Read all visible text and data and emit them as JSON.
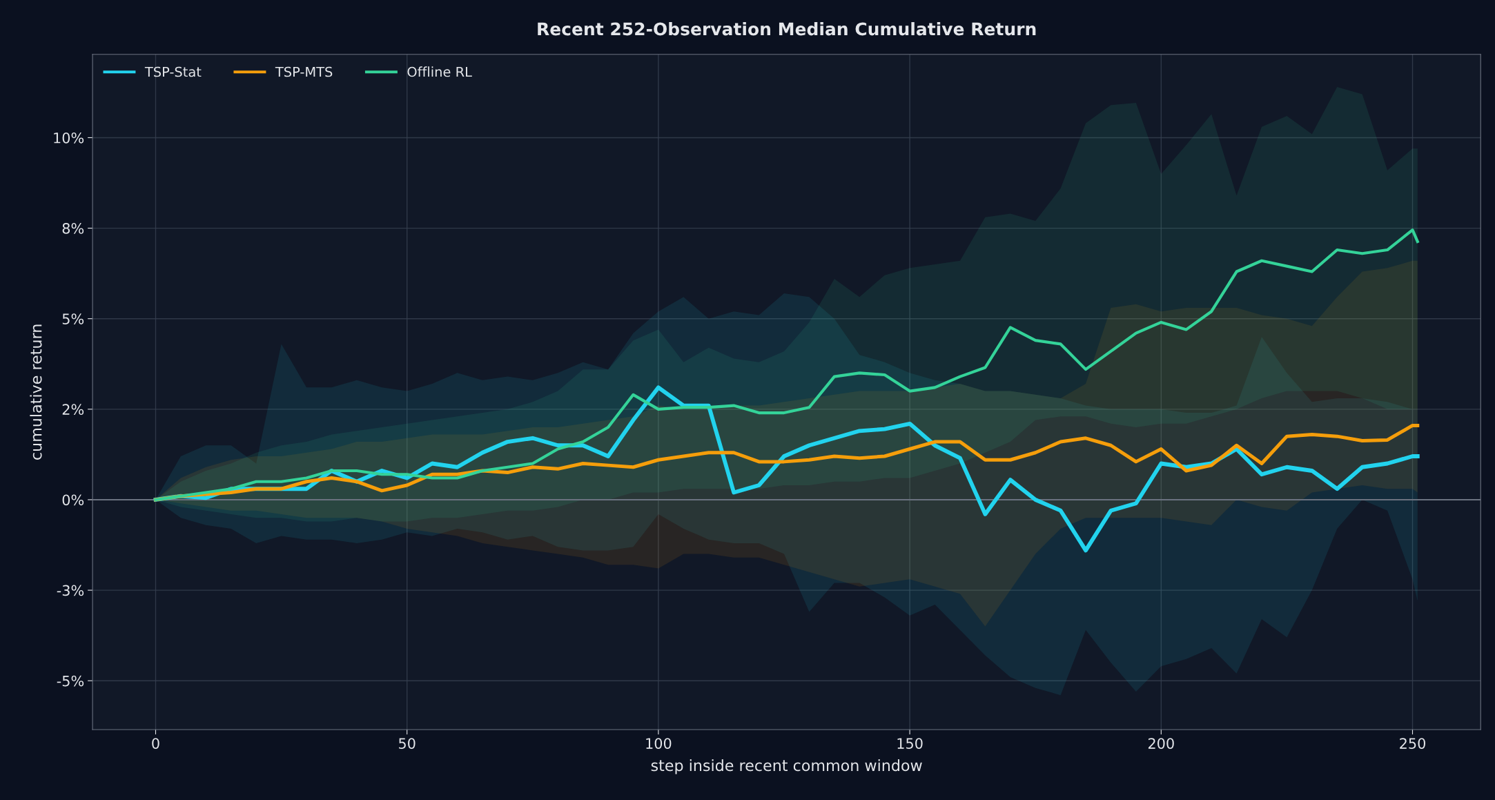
{
  "chart_data": {
    "type": "line",
    "title": "Recent 252-Observation Median Cumulative Return",
    "xlabel": "step inside recent common window",
    "ylabel": "cumulative return",
    "x": [
      0,
      5,
      10,
      15,
      20,
      25,
      30,
      35,
      40,
      45,
      50,
      55,
      60,
      65,
      70,
      75,
      80,
      85,
      90,
      95,
      100,
      105,
      110,
      115,
      120,
      125,
      130,
      135,
      140,
      145,
      150,
      155,
      160,
      165,
      170,
      175,
      180,
      185,
      190,
      195,
      200,
      205,
      210,
      215,
      220,
      225,
      230,
      235,
      240,
      245,
      250,
      251
    ],
    "series": [
      {
        "name": "TSP-Stat",
        "color": "#22d3ee",
        "values": [
          0,
          0.1,
          0.05,
          0.3,
          0.3,
          0.3,
          0.3,
          0.8,
          0.5,
          0.8,
          0.6,
          1.0,
          0.9,
          1.3,
          1.6,
          1.7,
          1.5,
          1.5,
          1.2,
          2.2,
          3.1,
          2.6,
          2.6,
          0.2,
          0.4,
          1.2,
          1.5,
          1.7,
          1.9,
          1.95,
          2.1,
          1.5,
          1.15,
          -0.4,
          0.55,
          0.0,
          -0.3,
          -1.4,
          -0.3,
          -0.1,
          1.0,
          0.9,
          1.0,
          1.4,
          0.7,
          0.9,
          0.8,
          0.3,
          0.9,
          1.0,
          1.2,
          1.2
        ],
        "lower": [
          0,
          -0.5,
          -0.7,
          -0.8,
          -1.2,
          -1.0,
          -1.1,
          -1.1,
          -1.2,
          -1.1,
          -0.9,
          -1.0,
          -0.8,
          -0.9,
          -1.1,
          -1.0,
          -1.3,
          -1.4,
          -1.4,
          -1.3,
          -0.4,
          -0.8,
          -1.1,
          -1.2,
          -1.2,
          -1.5,
          -3.1,
          -2.3,
          -2.3,
          -2.7,
          -3.2,
          -2.9,
          -3.6,
          -4.3,
          -4.9,
          -5.2,
          -5.4,
          -3.6,
          -4.5,
          -5.3,
          -4.6,
          -4.4,
          -4.1,
          -4.8,
          -3.3,
          -3.8,
          -2.5,
          -0.8,
          0.0,
          -0.3,
          -2.2,
          -2.8
        ],
        "upper": [
          0,
          1.2,
          1.5,
          1.5,
          1.0,
          4.3,
          3.1,
          3.1,
          3.3,
          3.1,
          3.0,
          3.2,
          3.5,
          3.3,
          3.4,
          3.3,
          3.5,
          3.8,
          3.6,
          4.6,
          5.2,
          5.6,
          5.0,
          5.2,
          5.1,
          5.7,
          5.6,
          5.0,
          4.0,
          3.8,
          3.5,
          3.3,
          3.2,
          3.0,
          3.0,
          2.9,
          2.8,
          2.6,
          2.5,
          2.5,
          2.5,
          2.4,
          2.4,
          2.6,
          4.5,
          3.5,
          2.7,
          2.8,
          2.8,
          2.7,
          2.5,
          2.5
        ]
      },
      {
        "name": "TSP-MTS",
        "color": "#f59e0b",
        "values": [
          0,
          0.1,
          0.15,
          0.2,
          0.3,
          0.3,
          0.5,
          0.6,
          0.5,
          0.25,
          0.4,
          0.7,
          0.7,
          0.8,
          0.75,
          0.9,
          0.85,
          1.0,
          0.95,
          0.9,
          1.1,
          1.2,
          1.3,
          1.3,
          1.05,
          1.05,
          1.1,
          1.2,
          1.15,
          1.2,
          1.4,
          1.6,
          1.6,
          1.1,
          1.1,
          1.3,
          1.6,
          1.7,
          1.5,
          1.05,
          1.4,
          0.8,
          0.95,
          1.5,
          1.0,
          1.75,
          1.8,
          1.75,
          1.63,
          1.65,
          2.05,
          2.05
        ],
        "lower": [
          0,
          -0.1,
          -0.2,
          -0.3,
          -0.3,
          -0.4,
          -0.5,
          -0.5,
          -0.5,
          -0.6,
          -0.8,
          -0.9,
          -1.0,
          -1.2,
          -1.3,
          -1.4,
          -1.5,
          -1.6,
          -1.8,
          -1.8,
          -1.9,
          -1.5,
          -1.5,
          -1.6,
          -1.6,
          -1.8,
          -2.0,
          -2.2,
          -2.4,
          -2.3,
          -2.2,
          -2.4,
          -2.6,
          -3.5,
          -2.5,
          -1.5,
          -0.8,
          -0.5,
          -0.5,
          -0.5,
          -0.5,
          -0.6,
          -0.7,
          0.0,
          -0.2,
          -0.3,
          0.2,
          0.3,
          0.4,
          0.3,
          0.3,
          0.2
        ],
        "upper": [
          0,
          0.6,
          0.9,
          1.1,
          1.2,
          1.2,
          1.3,
          1.4,
          1.6,
          1.6,
          1.7,
          1.8,
          1.8,
          1.8,
          1.9,
          2.0,
          2.0,
          2.1,
          2.2,
          2.3,
          2.6,
          2.5,
          2.5,
          2.6,
          2.6,
          2.7,
          2.8,
          2.9,
          3.0,
          3.0,
          3.0,
          3.1,
          3.2,
          3.0,
          3.0,
          2.9,
          2.8,
          3.2,
          5.3,
          5.4,
          5.2,
          5.3,
          5.3,
          5.3,
          5.1,
          5.0,
          4.8,
          5.6,
          6.3,
          6.4,
          6.6,
          6.6
        ]
      },
      {
        "name": "Offline RL",
        "color": "#34d399",
        "values": [
          0,
          0.1,
          0.2,
          0.3,
          0.5,
          0.5,
          0.6,
          0.8,
          0.8,
          0.7,
          0.7,
          0.6,
          0.6,
          0.8,
          0.9,
          1.0,
          1.4,
          1.6,
          2.0,
          2.9,
          2.5,
          2.55,
          2.55,
          2.6,
          2.4,
          2.4,
          2.55,
          3.4,
          3.5,
          3.45,
          3.0,
          3.1,
          3.4,
          3.65,
          4.76,
          4.4,
          4.3,
          3.6,
          4.1,
          4.6,
          4.9,
          4.7,
          5.2,
          6.3,
          6.6,
          6.45,
          6.3,
          6.9,
          6.8,
          6.9,
          7.45,
          7.13
        ],
        "lower": [
          0,
          -0.2,
          -0.3,
          -0.4,
          -0.5,
          -0.5,
          -0.6,
          -0.6,
          -0.5,
          -0.6,
          -0.6,
          -0.5,
          -0.5,
          -0.4,
          -0.3,
          -0.3,
          -0.2,
          0.0,
          0.0,
          0.2,
          0.2,
          0.3,
          0.3,
          0.3,
          0.3,
          0.4,
          0.4,
          0.5,
          0.5,
          0.6,
          0.6,
          0.8,
          1.0,
          1.3,
          1.6,
          2.2,
          2.3,
          2.3,
          2.1,
          2.0,
          2.1,
          2.1,
          2.3,
          2.5,
          2.8,
          3.0,
          3.0,
          3.0,
          2.8,
          2.5,
          2.5,
          2.5
        ],
        "upper": [
          0,
          0.5,
          0.8,
          1.0,
          1.3,
          1.5,
          1.6,
          1.8,
          1.9,
          2.0,
          2.1,
          2.2,
          2.3,
          2.4,
          2.5,
          2.7,
          3.0,
          3.6,
          3.6,
          4.4,
          4.7,
          3.8,
          4.2,
          3.9,
          3.8,
          4.1,
          4.9,
          6.1,
          5.6,
          6.2,
          6.4,
          6.5,
          6.6,
          7.8,
          7.9,
          7.7,
          8.6,
          10.4,
          10.9,
          10.96,
          9.0,
          9.8,
          10.65,
          8.4,
          10.3,
          10.6,
          10.1,
          11.4,
          11.2,
          9.1,
          9.7,
          9.7
        ]
      }
    ],
    "xlim": [
      -12.55,
      263.55
    ],
    "xticks": [
      0,
      50,
      100,
      150,
      200,
      250
    ],
    "ylim": [
      -6.35,
      12.3
    ],
    "yticks": [
      {
        "value": -5,
        "label": "-5%"
      },
      {
        "value": -2.5,
        "label": "-3%"
      },
      {
        "value": 0,
        "label": "0%"
      },
      {
        "value": 2.5,
        "label": "2%"
      },
      {
        "value": 5,
        "label": "5%"
      },
      {
        "value": 7.5,
        "label": "8%"
      },
      {
        "value": 10,
        "label": "10%"
      }
    ],
    "ref_lines": [
      {
        "axis": "y",
        "value": 0,
        "color": "#6b7280"
      }
    ],
    "grid": true,
    "legend": "top left",
    "marker": "none",
    "line_style": "solid"
  }
}
